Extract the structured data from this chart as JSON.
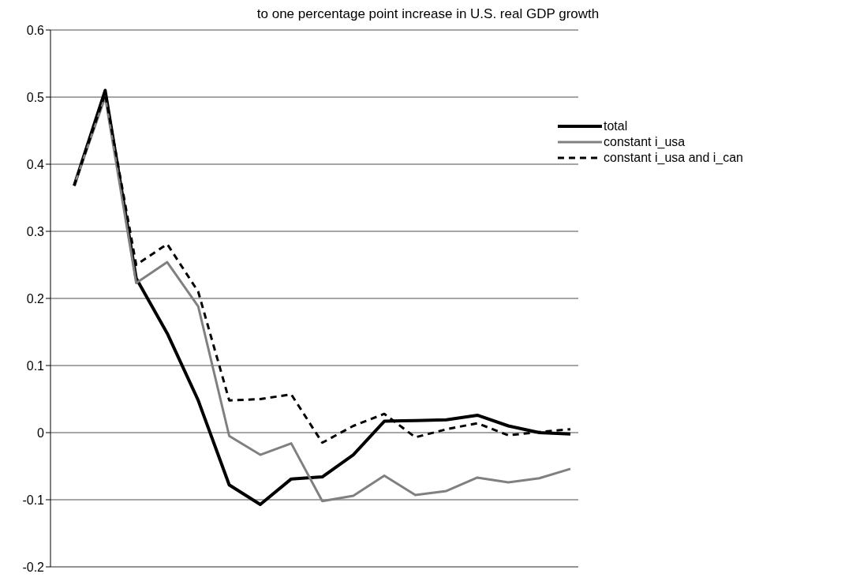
{
  "chart_data": {
    "type": "line",
    "title": "to one percentage point increase in U.S. real GDP growth",
    "categories": [
      null,
      null,
      null,
      null,
      null,
      null,
      null,
      null,
      null,
      null,
      null,
      null,
      null,
      null,
      null,
      null,
      null
    ],
    "series": [
      {
        "name": "total",
        "color": "#000000",
        "line_style": "solid",
        "values": [
          0.368,
          0.51,
          0.23,
          0.148,
          0.048,
          -0.078,
          -0.107,
          -0.069,
          -0.066,
          -0.033,
          0.017,
          0.018,
          0.019,
          0.026,
          0.01,
          0.0,
          -0.002
        ]
      },
      {
        "name": "constant i_usa",
        "color": "#808080",
        "line_style": "solid",
        "values": [
          0.368,
          0.5,
          0.223,
          0.254,
          0.188,
          -0.005,
          -0.033,
          -0.016,
          -0.102,
          -0.094,
          -0.064,
          -0.093,
          -0.087,
          -0.067,
          -0.074,
          -0.068,
          -0.054
        ]
      },
      {
        "name": "constant i_usa and i_can",
        "color": "#000000",
        "line_style": "dashed",
        "values": [
          0.368,
          0.505,
          0.25,
          0.281,
          0.21,
          0.048,
          0.05,
          0.057,
          -0.015,
          0.01,
          0.028,
          -0.007,
          0.005,
          0.014,
          -0.004,
          0.001,
          0.005
        ]
      }
    ],
    "ylim": [
      -0.2,
      0.6
    ],
    "yticks": [
      -0.2,
      -0.1,
      0,
      0.1,
      0.2,
      0.3,
      0.4,
      0.5,
      0.6
    ],
    "grid": "y",
    "legend": "top right",
    "marker": "none",
    "tick_labels": "y"
  }
}
